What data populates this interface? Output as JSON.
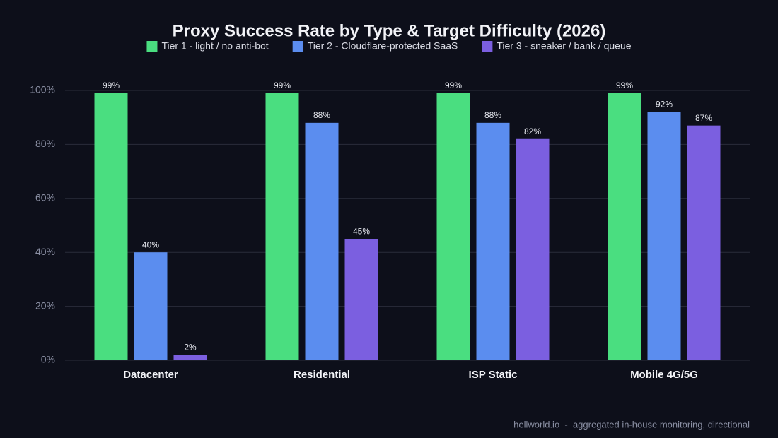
{
  "chart_data": {
    "type": "bar",
    "title": "Proxy Success Rate by Type & Target Difficulty (2026)",
    "categories": [
      "Datacenter",
      "Residential",
      "ISP Static",
      "Mobile 4G/5G"
    ],
    "series": [
      {
        "name": "Tier 1 - light / no anti-bot",
        "color": "#4ade80",
        "values": [
          99,
          99,
          99,
          99
        ],
        "value_labels": [
          "99%",
          "99%",
          "99%",
          "99%"
        ]
      },
      {
        "name": "Tier 2 - Cloudflare-protected SaaS",
        "color": "#5b8def",
        "values": [
          40,
          88,
          88,
          92
        ],
        "value_labels": [
          "40%",
          "88%",
          "88%",
          "92%"
        ]
      },
      {
        "name": "Tier 3 - sneaker / bank / queue",
        "color": "#7b5fe0",
        "values": [
          2,
          45,
          82,
          87
        ],
        "value_labels": [
          "2%",
          "45%",
          "82%",
          "87%"
        ]
      }
    ],
    "ylim": [
      0,
      100
    ],
    "yticks": [
      {
        "value": 0,
        "label": "0%"
      },
      {
        "value": 20,
        "label": "20%"
      },
      {
        "value": 40,
        "label": "40%"
      },
      {
        "value": 60,
        "label": "60%"
      },
      {
        "value": 80,
        "label": "80%"
      },
      {
        "value": 100,
        "label": "100%"
      }
    ],
    "grid": true,
    "legend": "top",
    "source": "hellworld.io  -  aggregated in-house monitoring, directional"
  }
}
